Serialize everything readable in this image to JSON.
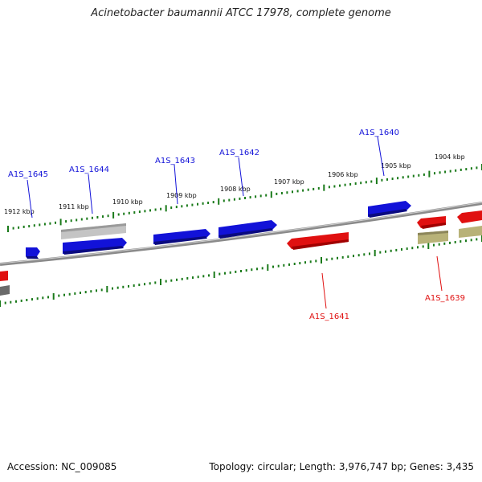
{
  "title": "Acinetobacter baumannii ATCC 17978, complete genome",
  "footer": {
    "accession": "Accession: NC_009085",
    "topology": "Topology: circular; Length: 3,976,747 bp; Genes: 3,435"
  },
  "colors": {
    "forward_gene": "#1212d8",
    "reverse_gene": "#e01010",
    "pseudo_gene": "#bfbfbf",
    "olive_gene": "#b8b278",
    "backbone": "#8a8a8a",
    "ticks": "#1a7a1a"
  },
  "scale_labels": [
    "1912 kbp",
    "1911 kbp",
    "1910 kbp",
    "1909 kbp",
    "1908 kbp",
    "1907 kbp",
    "1906 kbp",
    "1905 kbp",
    "1904 kbp"
  ],
  "gene_labels_top": [
    "A1S_1645",
    "A1S_1644",
    "A1S_1643",
    "A1S_1642",
    "A1S_1640"
  ],
  "gene_labels_bottom": [
    "A1S_1641",
    "A1S_1639"
  ]
}
